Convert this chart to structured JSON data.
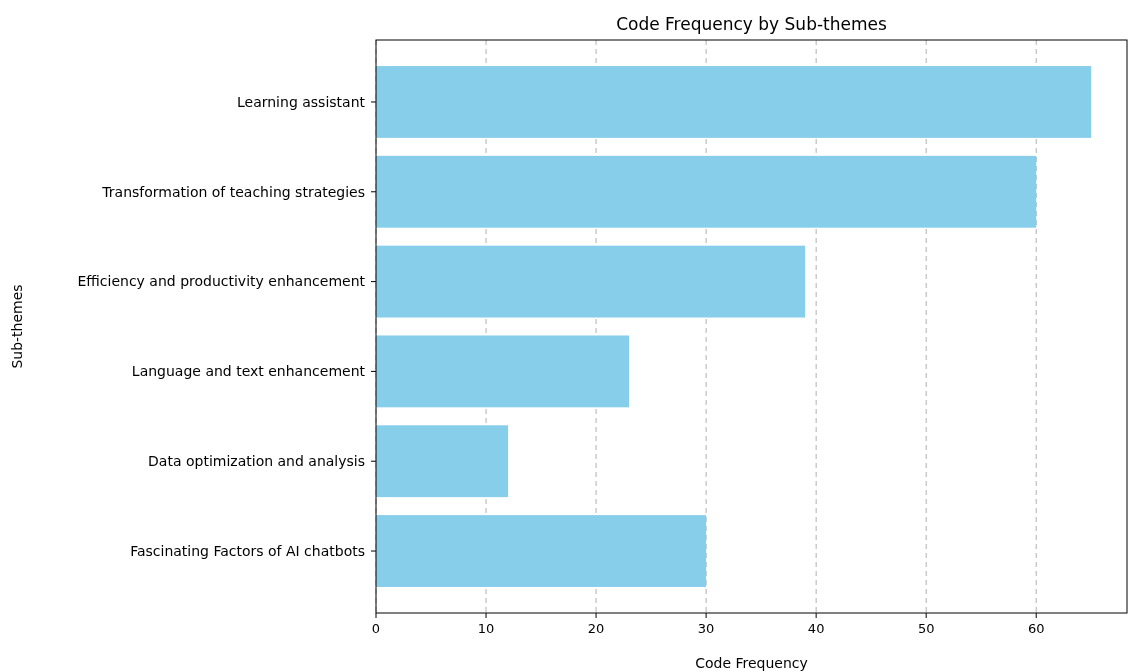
{
  "chart_data": {
    "type": "bar",
    "orientation": "horizontal",
    "title": "Code Frequency by Sub-themes",
    "xlabel": "Code Frequency",
    "ylabel": "Sub-themes",
    "categories": [
      "Learning assistant",
      "Transformation of teaching strategies",
      "Efficiency and productivity enhancement",
      "Language and text enhancement",
      "Data optimization and analysis",
      "Fascinating Factors of AI chatbots"
    ],
    "values": [
      65,
      60,
      39,
      23,
      12,
      30
    ],
    "color": "#87ceeb",
    "xlim": [
      0,
      68.25
    ],
    "xticks": [
      0,
      10,
      20,
      30,
      40,
      50,
      60
    ],
    "grid": "x"
  }
}
